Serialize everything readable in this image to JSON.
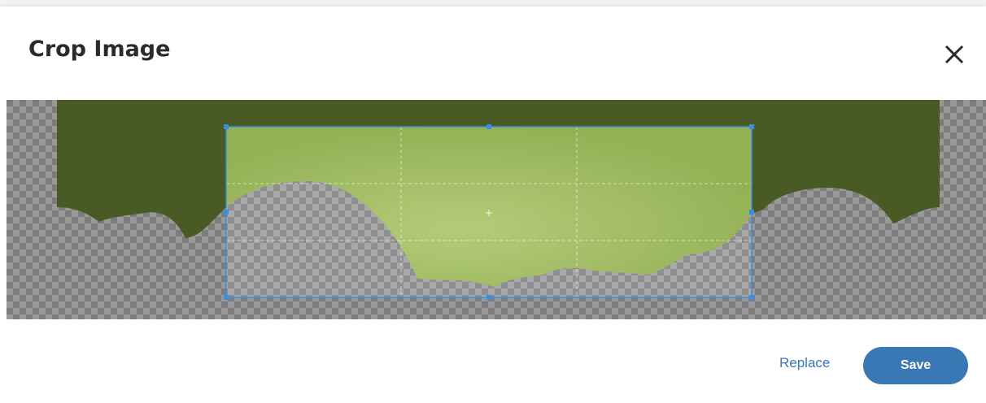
{
  "dialog": {
    "title": "Crop Image",
    "close_icon": "close-icon"
  },
  "crop": {
    "image_color": "#4a5a24",
    "selection_color": "#9bb55a",
    "selection_border": "#3a8de0",
    "checker_light": "#9a9a9a",
    "checker_dark": "#7c7c7c"
  },
  "footer": {
    "replace_label": "Replace",
    "save_label": "Save",
    "accent": "#3a78b5"
  }
}
